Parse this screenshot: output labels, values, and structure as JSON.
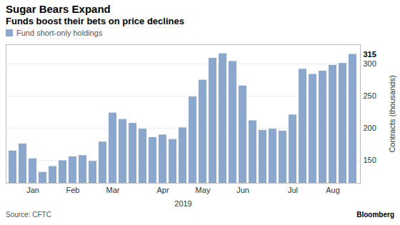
{
  "chart_data": {
    "type": "bar",
    "title": "Sugar Bears Expand",
    "subtitle": "Funds boost their bets on price declines",
    "categories": [
      null,
      null,
      "Jan",
      null,
      null,
      null,
      "Feb",
      null,
      null,
      null,
      "Mar",
      null,
      null,
      null,
      null,
      "Apr",
      null,
      null,
      null,
      "May",
      null,
      null,
      null,
      "Jun",
      null,
      null,
      null,
      null,
      "Jul",
      null,
      null,
      null,
      "Aug",
      null,
      null
    ],
    "series": [
      {
        "name": "Fund short-only holdings",
        "color": "#8ba8cc",
        "values": [
          165,
          176,
          153,
          132,
          141,
          150,
          156,
          158,
          149,
          179,
          224,
          214,
          208,
          199,
          186,
          190,
          183,
          201,
          249,
          275,
          309,
          316,
          304,
          266,
          212,
          197,
          199,
          196,
          221,
          292,
          284,
          289,
          298,
          301,
          315
        ]
      }
    ],
    "x_label": "2019",
    "y_label": "Contracts (thousands)",
    "ylim": [
      115,
      330
    ],
    "yticks": [
      150,
      200,
      250,
      300
    ],
    "grid": true,
    "legend": "top-left",
    "annotation": {
      "text": "315",
      "y": 315
    },
    "source": "Source: CFTC",
    "credit": "Bloomberg"
  }
}
